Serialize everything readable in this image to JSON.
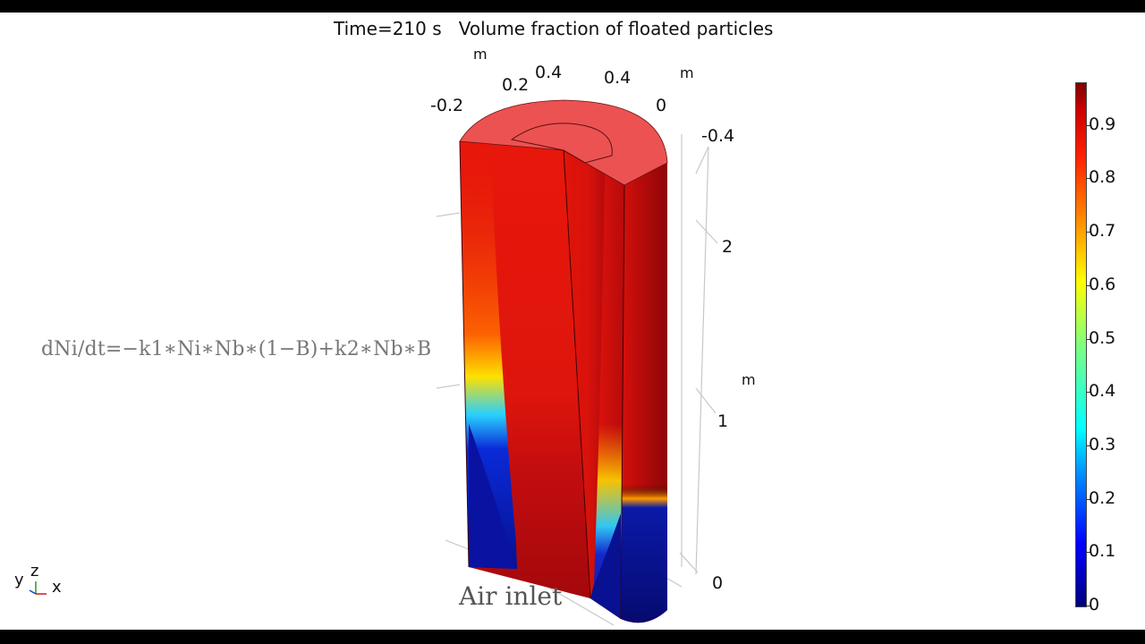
{
  "title": "Time=210 s   Volume fraction of floated particles",
  "equation": "dNi/dt=−k1∗Ni∗Nb∗(1−B)+k2∗Nb∗B",
  "inlet_label": "Air inlet",
  "axes": {
    "x_unit": "m",
    "y_unit": "m",
    "z_unit": "m",
    "x_ticks": [
      "-0.2",
      "0.2",
      "0.4"
    ],
    "y_ticks": [
      "0.4",
      "0",
      "-0.4"
    ],
    "z_ticks": [
      "2",
      "1",
      "0"
    ]
  },
  "colorbar": {
    "ticks": [
      "0.9",
      "0.8",
      "0.7",
      "0.6",
      "0.5",
      "0.4",
      "0.3",
      "0.2",
      "0.1",
      "0"
    ],
    "min": 0,
    "max": 0.98,
    "colormap": "rainbow"
  },
  "triad": {
    "y": "y",
    "z": "z",
    "x": "x"
  },
  "colors": {
    "high": "#e51a0a",
    "high_dark": "#a8070a",
    "top_face": "#ec5050",
    "low": "#0b0f9a",
    "grid": "#c8c8c8"
  }
}
